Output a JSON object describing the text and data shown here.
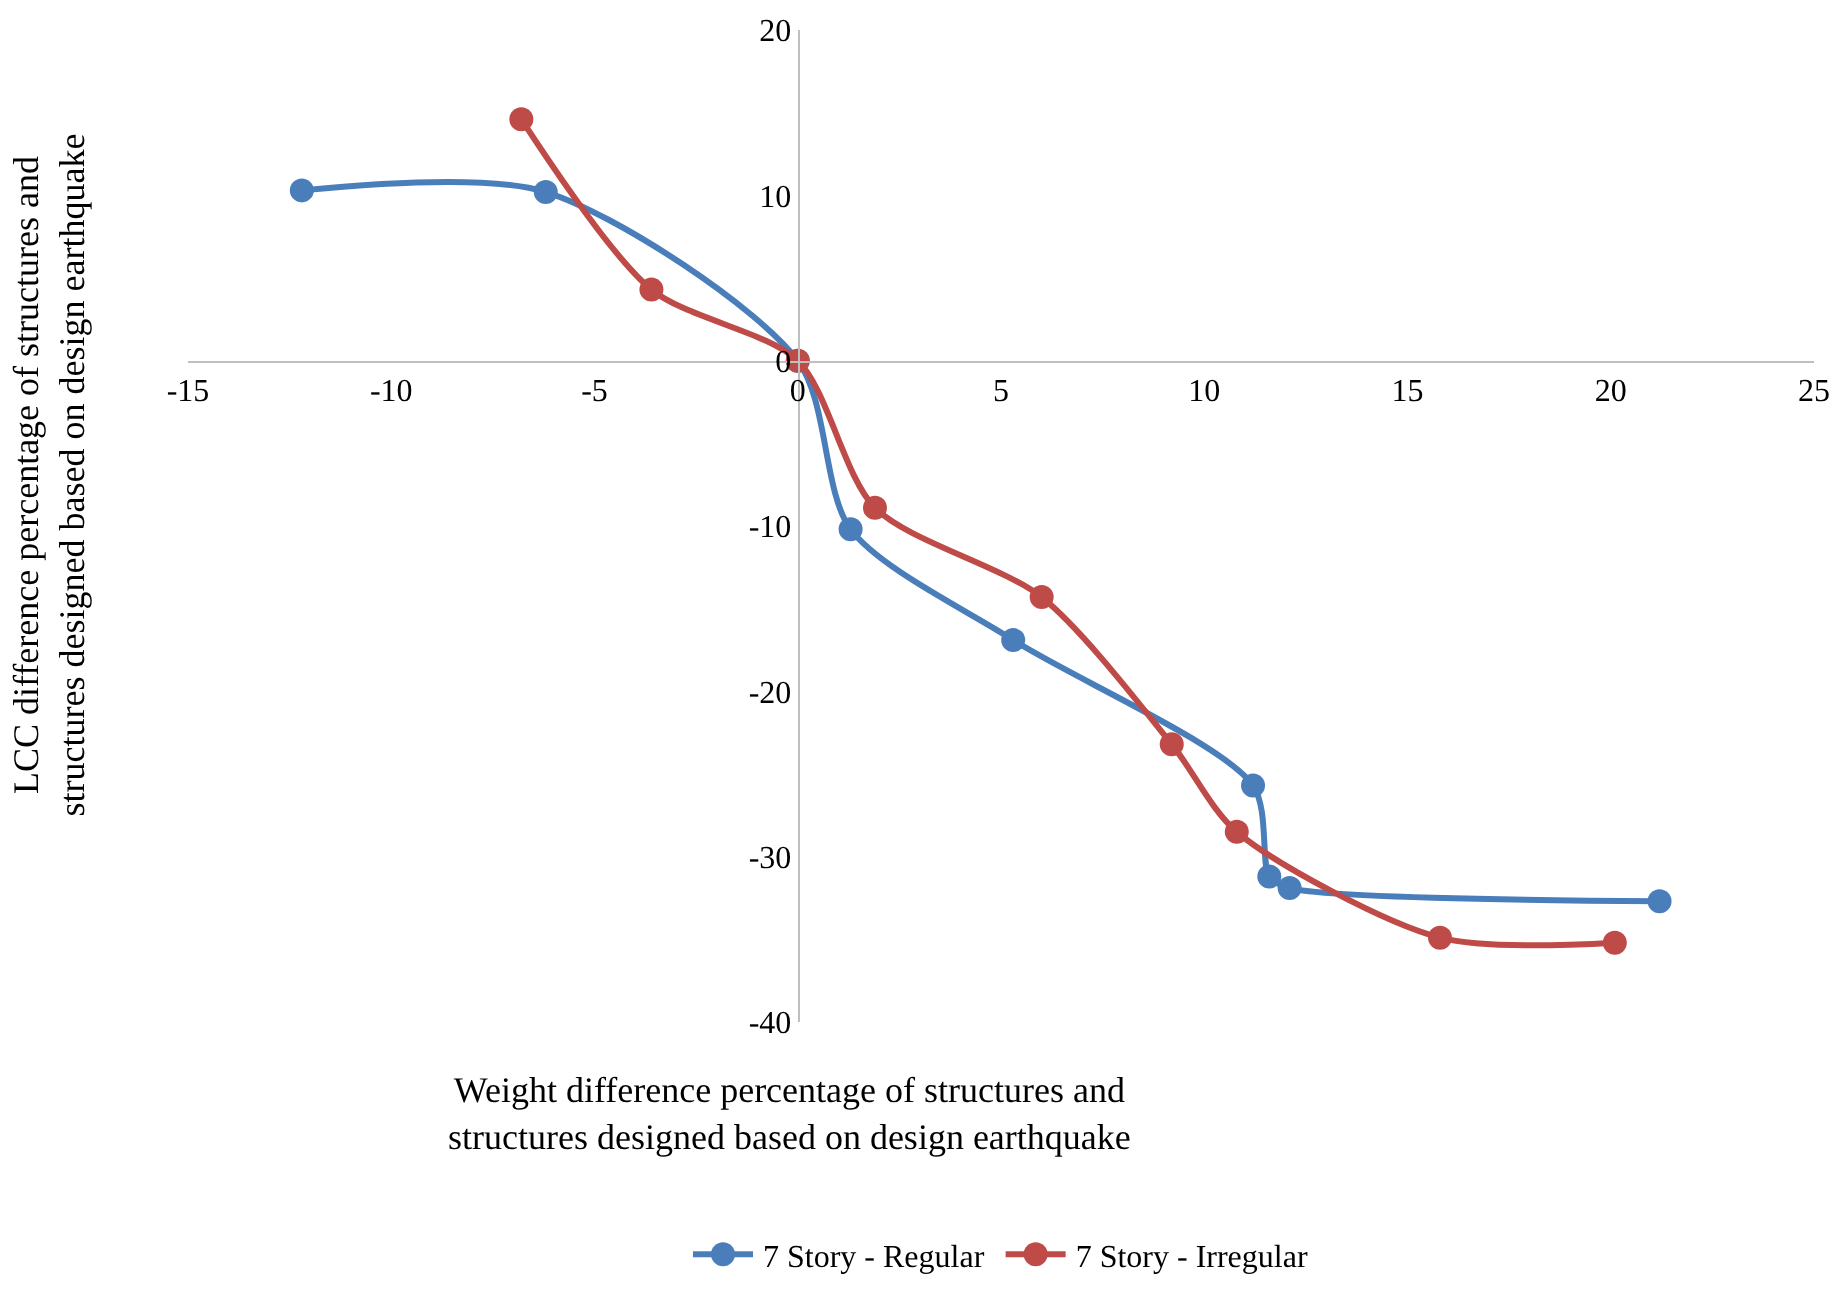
{
  "chart_data": {
    "type": "line",
    "xlabel": "Weight difference percentage of structures and structures designed based on design earthquake",
    "ylabel": "LCC difference percentage of structures and structures designed based on design earthquake",
    "xlim": [
      -15,
      25
    ],
    "xticks": [
      -15,
      -10,
      -5,
      0,
      5,
      10,
      15,
      20,
      25
    ],
    "ylim": [
      -40,
      20
    ],
    "yticks": [
      -40,
      -30,
      -20,
      -10,
      0,
      10,
      20
    ],
    "grid": false,
    "legend": "bottom",
    "marker": "circle",
    "line_style": "solid",
    "series": [
      {
        "name": "7 Story - Regular",
        "color": "#4a7ebb",
        "x": [
          -12.2,
          -6.2,
          0,
          1.3,
          5.3,
          11.2,
          11.6,
          12.1,
          21.2
        ],
        "values": [
          10.3,
          10.2,
          0,
          -10.2,
          -16.9,
          -25.7,
          -31.2,
          -31.9,
          -32.7
        ]
      },
      {
        "name": "7 Story - Irregular",
        "color": "#be4b48",
        "x": [
          -6.8,
          -3.6,
          0,
          1.9,
          6.0,
          9.2,
          10.8,
          15.8,
          20.1
        ],
        "values": [
          14.6,
          4.3,
          0,
          -8.9,
          -14.3,
          -23.2,
          -28.5,
          -34.9,
          -35.2
        ]
      }
    ]
  }
}
